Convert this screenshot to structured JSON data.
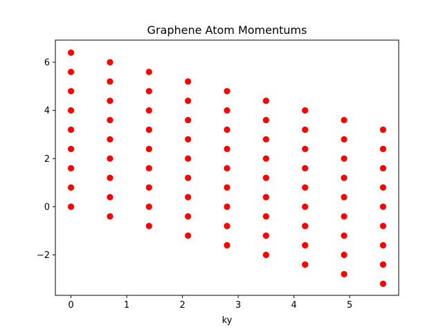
{
  "chart_data": {
    "type": "scatter",
    "title": "Graphene Atom Momentums",
    "xlabel": "ky",
    "ylabel": "",
    "xlim": [
      -0.28,
      5.88
    ],
    "ylim": [
      -3.68,
      6.92
    ],
    "xticks": [
      {
        "value": 0,
        "label": "0"
      },
      {
        "value": 1,
        "label": "1"
      },
      {
        "value": 2,
        "label": "2"
      },
      {
        "value": 3,
        "label": "3"
      },
      {
        "value": 4,
        "label": "4"
      },
      {
        "value": 5,
        "label": "5"
      }
    ],
    "yticks": [
      {
        "value": -2,
        "label": "−2"
      },
      {
        "value": 0,
        "label": "0"
      },
      {
        "value": 2,
        "label": "2"
      },
      {
        "value": 4,
        "label": "4"
      },
      {
        "value": 6,
        "label": "6"
      }
    ],
    "grid": false,
    "marker_color": "#ff0000",
    "columns": [
      {
        "x": 0.0,
        "y": [
          6.4,
          5.6,
          4.8,
          4.0,
          3.2,
          2.4,
          1.6,
          0.8,
          0.0
        ]
      },
      {
        "x": 0.7,
        "y": [
          6.0,
          5.2,
          4.4,
          3.6,
          2.8,
          2.0,
          1.2,
          0.4,
          -0.4
        ]
      },
      {
        "x": 1.4,
        "y": [
          5.6,
          4.8,
          4.0,
          3.2,
          2.4,
          1.6,
          0.8,
          0.0,
          -0.8
        ]
      },
      {
        "x": 2.1,
        "y": [
          5.2,
          4.4,
          3.6,
          2.8,
          2.0,
          1.2,
          0.4,
          -0.4,
          -1.2
        ]
      },
      {
        "x": 2.8,
        "y": [
          4.8,
          4.0,
          3.2,
          2.4,
          1.6,
          0.8,
          0.0,
          -0.8,
          -1.6
        ]
      },
      {
        "x": 3.5,
        "y": [
          4.4,
          3.6,
          2.8,
          2.0,
          1.2,
          0.4,
          -0.4,
          -1.2,
          -2.0
        ]
      },
      {
        "x": 4.2,
        "y": [
          4.0,
          3.2,
          2.4,
          1.6,
          0.8,
          0.0,
          -0.8,
          -1.6,
          -2.4
        ]
      },
      {
        "x": 4.9,
        "y": [
          3.6,
          2.8,
          2.0,
          1.2,
          0.4,
          -0.4,
          -1.2,
          -2.0,
          -2.8
        ]
      },
      {
        "x": 5.6,
        "y": [
          3.2,
          2.4,
          1.6,
          0.8,
          0.0,
          -0.8,
          -1.6,
          -2.4,
          -3.2
        ]
      }
    ]
  }
}
